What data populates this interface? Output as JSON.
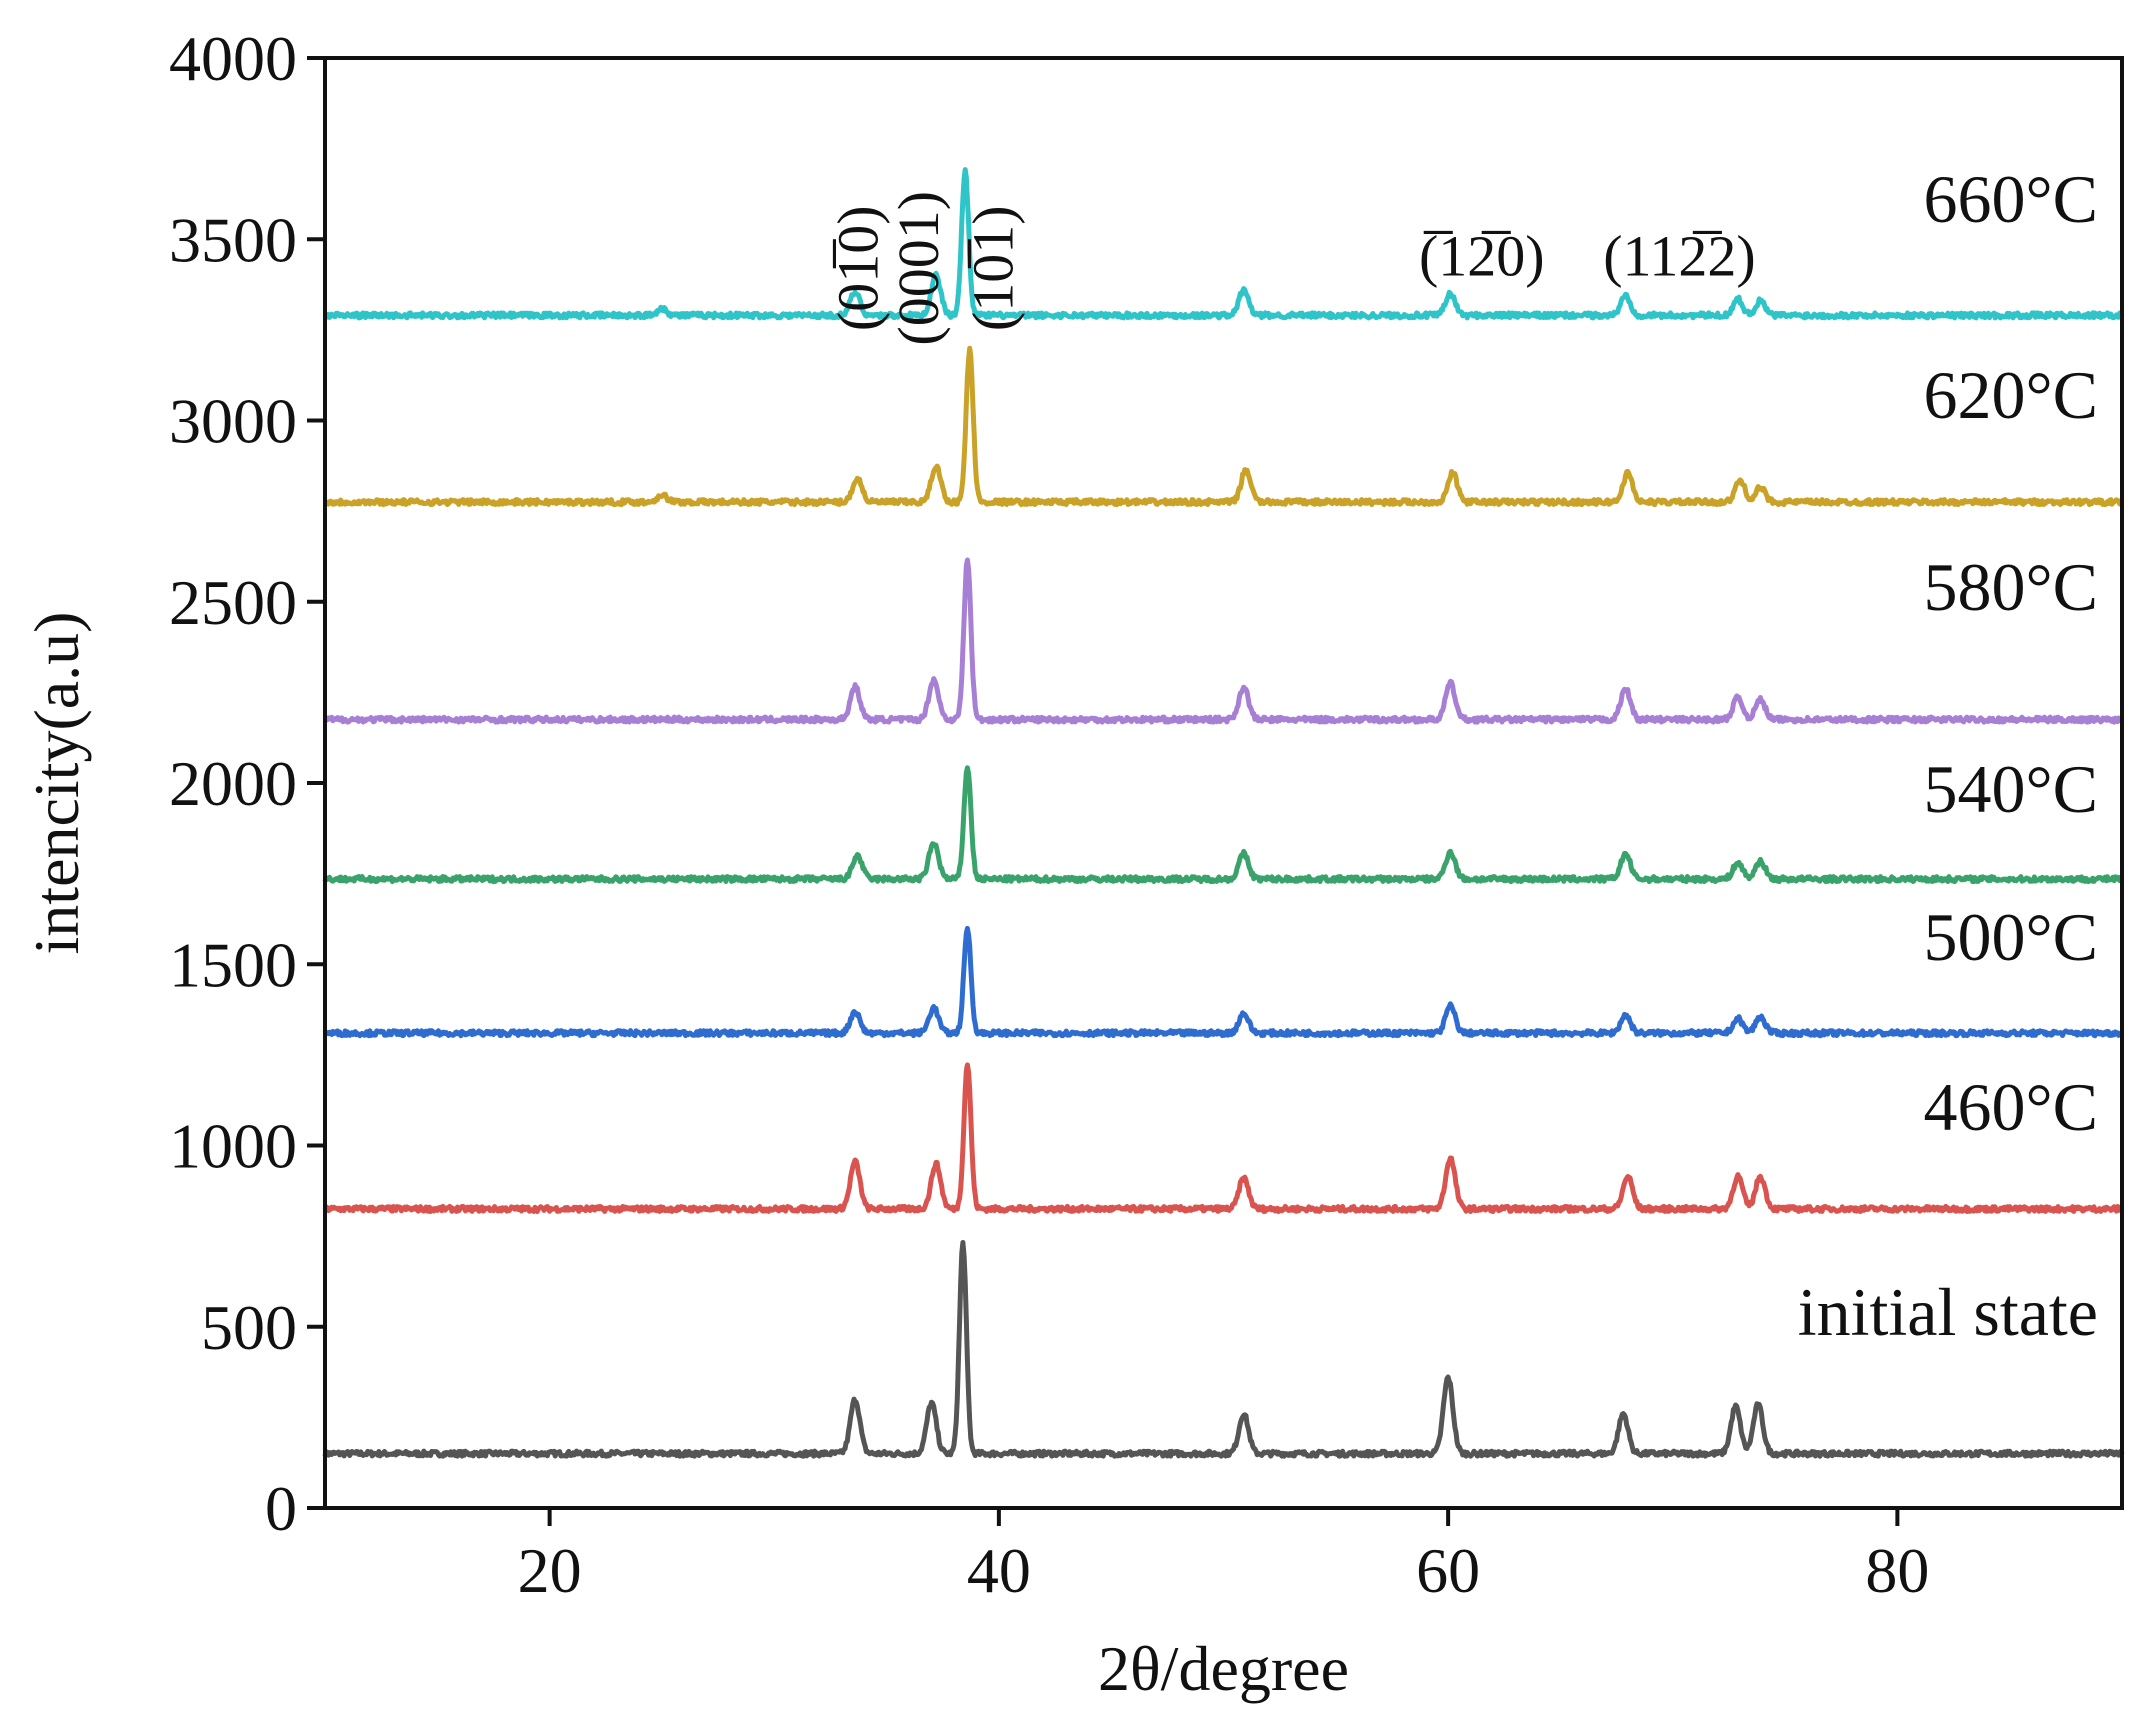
{
  "chart_data": {
    "type": "line",
    "title": "",
    "xlabel": "2θ/degree",
    "ylabel": "intencity(a.u)",
    "xlim": [
      10,
      90
    ],
    "ylim": [
      0,
      4000
    ],
    "xticks": [
      20,
      40,
      60,
      80
    ],
    "yticks": [
      0,
      500,
      1000,
      1500,
      2000,
      2500,
      3000,
      3500,
      4000
    ],
    "grid": false,
    "legend": "inline labels at right",
    "series": [
      {
        "name": "initial state",
        "color": "#555555",
        "baseline": 150,
        "peaks": [
          {
            "x": 33.6,
            "height": 150
          },
          {
            "x": 37.0,
            "height": 140
          },
          {
            "x": 38.4,
            "height": 580
          },
          {
            "x": 50.9,
            "height": 110
          },
          {
            "x": 60.0,
            "height": 210
          },
          {
            "x": 67.8,
            "height": 110
          },
          {
            "x": 72.8,
            "height": 130
          },
          {
            "x": 73.8,
            "height": 135
          }
        ]
      },
      {
        "name": "460°C",
        "color": "#d9534f",
        "baseline": 825,
        "peaks": [
          {
            "x": 33.6,
            "height": 130
          },
          {
            "x": 37.2,
            "height": 125
          },
          {
            "x": 38.6,
            "height": 400
          },
          {
            "x": 50.9,
            "height": 85
          },
          {
            "x": 60.1,
            "height": 140
          },
          {
            "x": 68.0,
            "height": 90
          },
          {
            "x": 72.9,
            "height": 90
          },
          {
            "x": 73.9,
            "height": 90
          }
        ]
      },
      {
        "name": "500°C",
        "color": "#2f6cd0",
        "baseline": 1310,
        "peaks": [
          {
            "x": 33.6,
            "height": 60
          },
          {
            "x": 37.1,
            "height": 70
          },
          {
            "x": 38.6,
            "height": 290
          },
          {
            "x": 50.9,
            "height": 55
          },
          {
            "x": 60.1,
            "height": 75
          },
          {
            "x": 67.9,
            "height": 50
          },
          {
            "x": 72.9,
            "height": 40
          },
          {
            "x": 73.9,
            "height": 45
          }
        ]
      },
      {
        "name": "540°C",
        "color": "#3aa36b",
        "baseline": 1735,
        "peaks": [
          {
            "x": 33.7,
            "height": 65
          },
          {
            "x": 37.1,
            "height": 100
          },
          {
            "x": 38.6,
            "height": 310
          },
          {
            "x": 50.9,
            "height": 70
          },
          {
            "x": 60.1,
            "height": 75
          },
          {
            "x": 67.9,
            "height": 70
          },
          {
            "x": 72.9,
            "height": 45
          },
          {
            "x": 73.9,
            "height": 50
          }
        ]
      },
      {
        "name": "580°C",
        "color": "#a77fd4",
        "baseline": 2175,
        "peaks": [
          {
            "x": 33.6,
            "height": 90
          },
          {
            "x": 37.1,
            "height": 110
          },
          {
            "x": 38.6,
            "height": 440
          },
          {
            "x": 50.9,
            "height": 90
          },
          {
            "x": 60.1,
            "height": 100
          },
          {
            "x": 67.9,
            "height": 85
          },
          {
            "x": 72.9,
            "height": 60
          },
          {
            "x": 73.9,
            "height": 55
          }
        ]
      },
      {
        "name": "620°C",
        "color": "#c9a227",
        "baseline": 2775,
        "peaks": [
          {
            "x": 25.0,
            "height": 20
          },
          {
            "x": 33.7,
            "height": 65
          },
          {
            "x": 37.2,
            "height": 100
          },
          {
            "x": 38.7,
            "height": 420
          },
          {
            "x": 51.0,
            "height": 90
          },
          {
            "x": 60.2,
            "height": 80
          },
          {
            "x": 68.0,
            "height": 80
          },
          {
            "x": 73.0,
            "height": 60
          },
          {
            "x": 73.9,
            "height": 40
          }
        ]
      },
      {
        "name": "660°C",
        "color": "#2ec4c8",
        "baseline": 3290,
        "peaks": [
          {
            "x": 25.0,
            "height": 20
          },
          {
            "x": 33.6,
            "height": 65
          },
          {
            "x": 37.2,
            "height": 110
          },
          {
            "x": 38.5,
            "height": 400
          },
          {
            "x": 50.9,
            "height": 70
          },
          {
            "x": 60.1,
            "height": 60
          },
          {
            "x": 67.9,
            "height": 55
          },
          {
            "x": 72.9,
            "height": 45
          },
          {
            "x": 73.9,
            "height": 40
          }
        ]
      }
    ],
    "annotations": [
      {
        "text": "(01̅0)",
        "x": 34.6,
        "y": 3420,
        "rotation": -90
      },
      {
        "text": "(0001)",
        "x": 37.3,
        "y": 3420,
        "rotation": -90
      },
      {
        "text": "(10̅1)",
        "x": 40.6,
        "y": 3420,
        "rotation": -90
      },
      {
        "text": "(̅12̅0)",
        "x": 61.5,
        "y": 3400,
        "rotation": 0
      },
      {
        "text": "(112̅2)",
        "x": 70.3,
        "y": 3400,
        "rotation": 0
      }
    ]
  }
}
